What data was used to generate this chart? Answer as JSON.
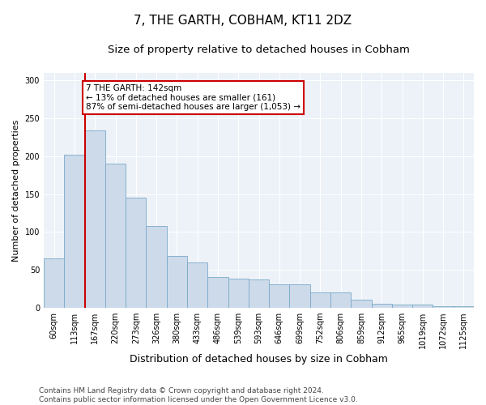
{
  "title1": "7, THE GARTH, COBHAM, KT11 2DZ",
  "title2": "Size of property relative to detached houses in Cobham",
  "xlabel": "Distribution of detached houses by size in Cobham",
  "ylabel": "Number of detached properties",
  "bar_labels": [
    "60sqm",
    "113sqm",
    "167sqm",
    "220sqm",
    "273sqm",
    "326sqm",
    "380sqm",
    "433sqm",
    "486sqm",
    "539sqm",
    "593sqm",
    "646sqm",
    "699sqm",
    "752sqm",
    "806sqm",
    "859sqm",
    "912sqm",
    "965sqm",
    "1019sqm",
    "1072sqm",
    "1125sqm"
  ],
  "bar_values": [
    65,
    202,
    234,
    190,
    145,
    108,
    68,
    60,
    40,
    38,
    37,
    31,
    31,
    20,
    20,
    10,
    5,
    4,
    4,
    2,
    2
  ],
  "bar_color": "#ccdaea",
  "bar_edge_color": "#7aaac8",
  "annotation_text": "7 THE GARTH: 142sqm\n← 13% of detached houses are smaller (161)\n87% of semi-detached houses are larger (1,053) →",
  "annotation_box_color": "#ffffff",
  "annotation_box_edge": "#cc0000",
  "red_line_color": "#cc0000",
  "red_line_x": 1.5,
  "ylim": [
    0,
    310
  ],
  "yticks": [
    0,
    50,
    100,
    150,
    200,
    250,
    300
  ],
  "footer": "Contains HM Land Registry data © Crown copyright and database right 2024.\nContains public sector information licensed under the Open Government Licence v3.0.",
  "title1_fontsize": 11,
  "title2_fontsize": 9.5,
  "xlabel_fontsize": 9,
  "ylabel_fontsize": 8,
  "tick_fontsize": 7,
  "footer_fontsize": 6.5,
  "annotation_fontsize": 7.5,
  "background_color": "#edf2f8"
}
